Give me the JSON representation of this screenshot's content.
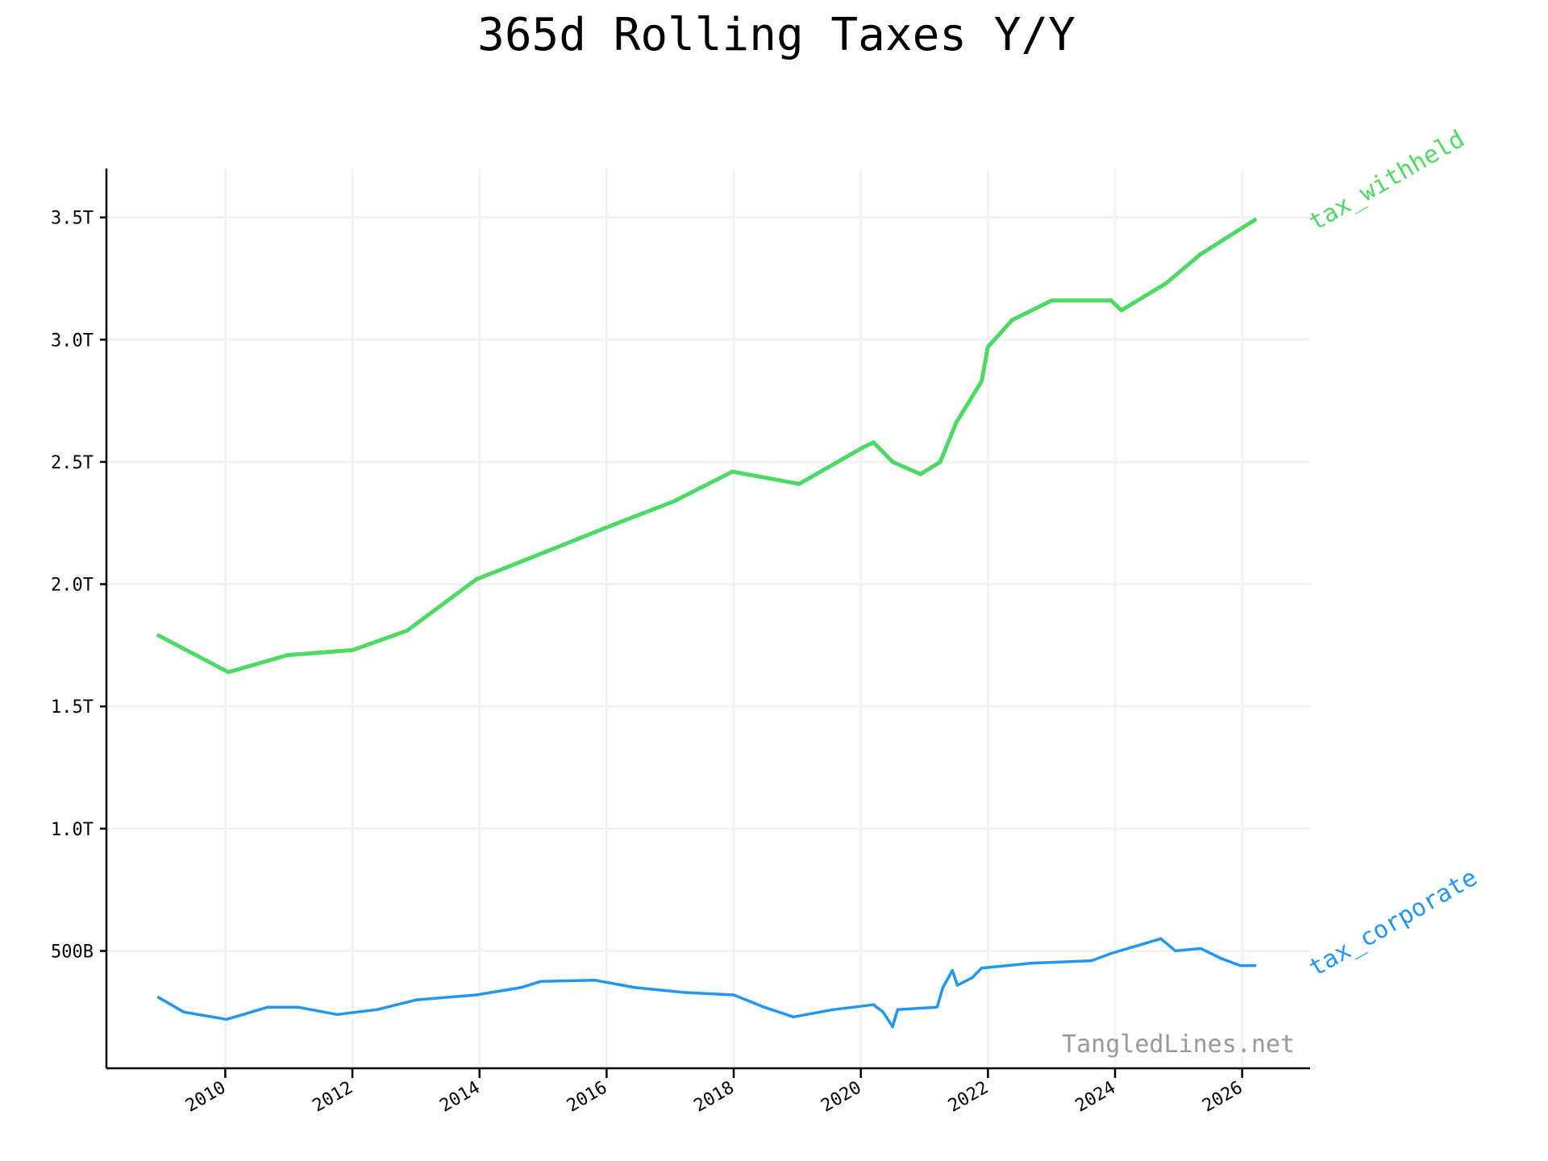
{
  "chart_data": {
    "type": "line",
    "title": "365d Rolling Taxes Y/Y",
    "xlabel": "",
    "ylabel": "",
    "xlim": [
      2008.13,
      2027.07
    ],
    "ylim": [
      0.02,
      3.7
    ],
    "grid": true,
    "legend": "inline labels at right end of lines",
    "x_ticks": [
      2010,
      2012,
      2014,
      2016,
      2018,
      2020,
      2022,
      2024,
      2026
    ],
    "x_tick_labels": [
      "2010",
      "2012",
      "2014",
      "2016",
      "2018",
      "2020",
      "2022",
      "2024",
      "2026"
    ],
    "y_ticks": [
      0.5,
      1.0,
      1.5,
      2.0,
      2.5,
      3.0,
      3.5
    ],
    "y_tick_labels": [
      "500B",
      "1.0T",
      "1.5T",
      "2.0T",
      "2.5T",
      "3.0T",
      "3.5T"
    ],
    "y_unit": "trillions USD",
    "watermark": "TangledLines.net",
    "series": [
      {
        "name": "tax_withheld",
        "color": "#4cd964",
        "x": [
          2008.95,
          2010.05,
          2010.98,
          2012.0,
          2012.86,
          2013.95,
          2014.73,
          2015.98,
          2017.07,
          2017.98,
          2019.03,
          2020.04,
          2020.2,
          2020.5,
          2020.94,
          2021.25,
          2021.5,
          2021.9,
          2022.0,
          2022.38,
          2023.0,
          2023.94,
          2024.1,
          2024.8,
          2025.35,
          2026.2
        ],
        "y": [
          1.79,
          1.64,
          1.71,
          1.73,
          1.81,
          2.02,
          2.1,
          2.23,
          2.34,
          2.46,
          2.41,
          2.56,
          2.58,
          2.5,
          2.45,
          2.5,
          2.66,
          2.83,
          2.97,
          3.08,
          3.16,
          3.16,
          3.12,
          3.23,
          3.35,
          3.49
        ]
      },
      {
        "name": "tax_corporate",
        "color": "#2196f3",
        "x": [
          2008.95,
          2009.35,
          2010.02,
          2010.67,
          2011.14,
          2011.76,
          2012.39,
          2013.01,
          2013.95,
          2014.65,
          2014.96,
          2015.82,
          2016.45,
          2017.23,
          2018.0,
          2018.48,
          2018.94,
          2019.57,
          2020.2,
          2020.35,
          2020.5,
          2020.58,
          2021.2,
          2021.29,
          2021.44,
          2021.52,
          2021.75,
          2021.9,
          2022.69,
          2023.63,
          2023.94,
          2024.33,
          2024.72,
          2024.95,
          2025.35,
          2025.66,
          2025.97,
          2026.2
        ],
        "y": [
          0.31,
          0.25,
          0.22,
          0.27,
          0.27,
          0.24,
          0.26,
          0.3,
          0.32,
          0.35,
          0.375,
          0.38,
          0.35,
          0.33,
          0.32,
          0.27,
          0.23,
          0.26,
          0.28,
          0.25,
          0.19,
          0.26,
          0.27,
          0.35,
          0.42,
          0.36,
          0.39,
          0.43,
          0.45,
          0.46,
          0.49,
          0.52,
          0.55,
          0.5,
          0.51,
          0.47,
          0.44,
          0.44
        ]
      }
    ]
  }
}
